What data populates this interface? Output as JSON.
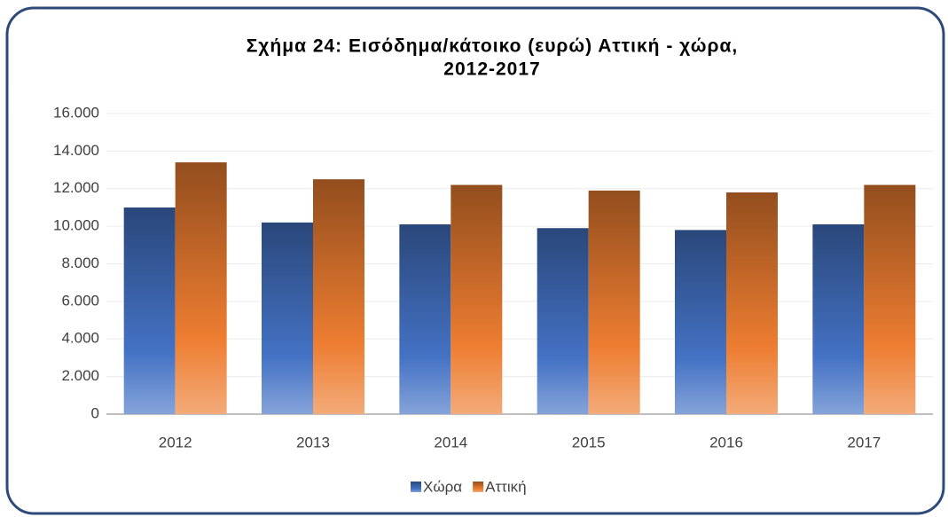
{
  "chart_data": {
    "type": "bar",
    "title": [
      "Σχήμα 24: Εισόδημα/κάτοικο (ευρώ) Αττική - χώρα,",
      "2012-2017"
    ],
    "categories": [
      "2012",
      "2013",
      "2014",
      "2015",
      "2016",
      "2017"
    ],
    "series": [
      {
        "name": "Χώρα",
        "color": "#4472c4",
        "values": [
          11000,
          10200,
          10100,
          9900,
          9800,
          10100
        ]
      },
      {
        "name": "Αττική",
        "color": "#ed7d31",
        "values": [
          13400,
          12500,
          12200,
          11900,
          11800,
          12200
        ]
      }
    ],
    "ylim": [
      0,
      16000
    ],
    "yticks": [
      0,
      {
        "value": 2000,
        "label": "2.000"
      },
      {
        "value": 4000,
        "label": "4.000"
      },
      {
        "value": 6000,
        "label": "6.000"
      },
      {
        "value": 8000,
        "label": "8.000"
      },
      {
        "value": 10000,
        "label": "10.000"
      },
      {
        "value": 12000,
        "label": "12.000"
      },
      {
        "value": 14000,
        "label": "14.000"
      },
      {
        "value": 16000,
        "label": "16.000"
      }
    ],
    "grid": true,
    "legend": "bottom"
  }
}
